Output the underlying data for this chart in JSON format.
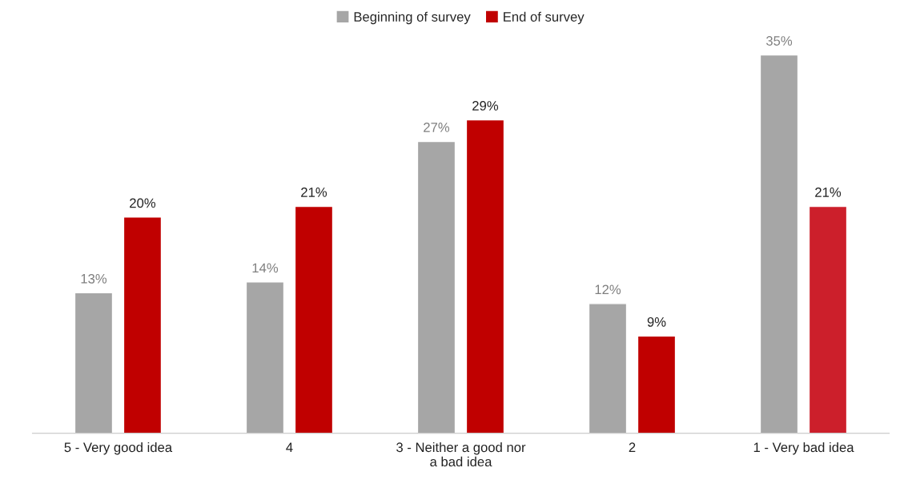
{
  "chart_data": {
    "type": "bar",
    "categories": [
      "5 - Very good idea",
      "4",
      "3 - Neither a good nor a bad idea",
      "2",
      "1 - Very bad idea"
    ],
    "series": [
      {
        "name": "Beginning of survey",
        "color": "#a6a6a6",
        "values": [
          13,
          14,
          27,
          12,
          35
        ],
        "value_labels": [
          "13%",
          "14%",
          "27%",
          "12%",
          "35%"
        ]
      },
      {
        "name": "End of survey",
        "color": "#c00000",
        "colors": [
          "#c00000",
          "#c00000",
          "#c00000",
          "#c00000",
          "#cc1f2b"
        ],
        "values": [
          20,
          21,
          29,
          9,
          21
        ],
        "value_labels": [
          "20%",
          "21%",
          "29%",
          "9%",
          "21%"
        ]
      }
    ],
    "legend": "top",
    "grid": false
  }
}
